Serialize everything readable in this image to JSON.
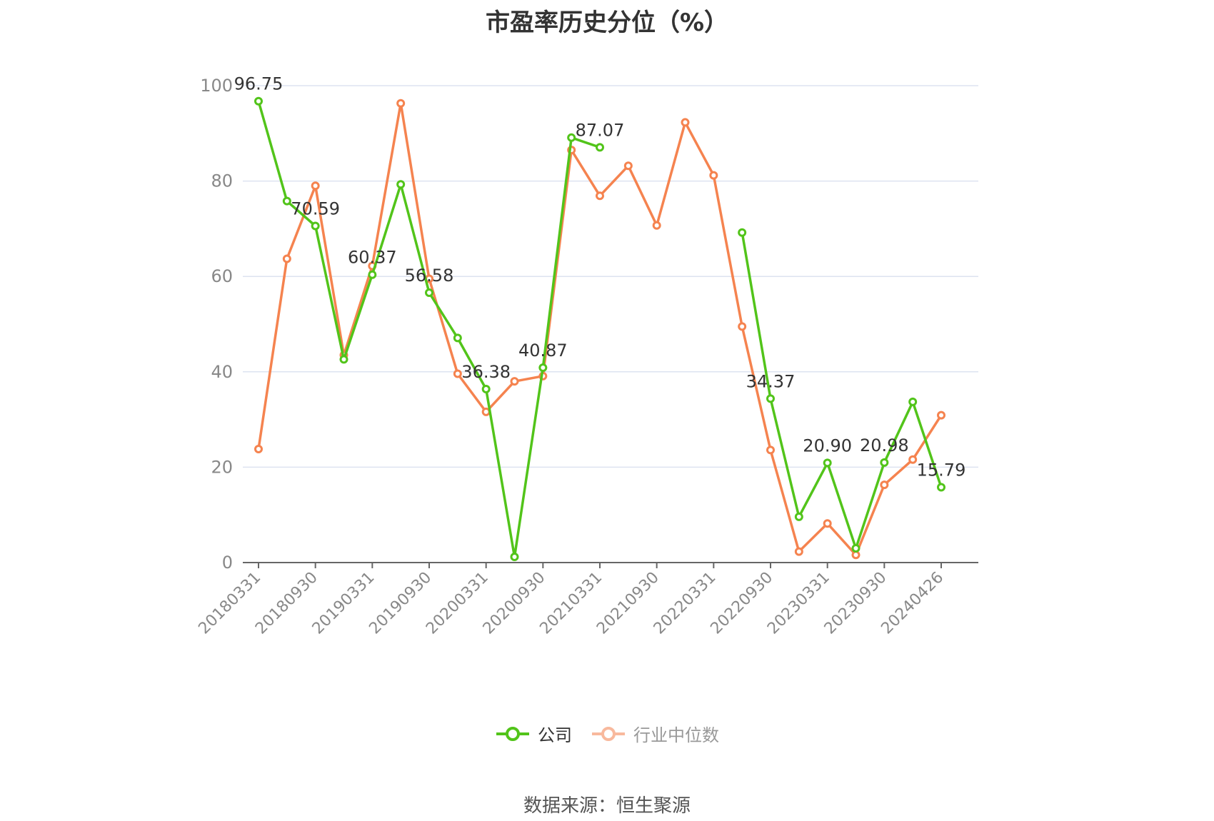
{
  "title": "市盈率历史分位（%）",
  "source": "数据来源：恒生聚源",
  "colors": {
    "company": "#52c41a",
    "industry": "#f5834f",
    "industry_legend": "#f8b99d",
    "grid": "#dde3f0",
    "axis": "#666666",
    "tick_text": "#888888"
  },
  "chart_data": {
    "type": "line",
    "title": "市盈率历史分位（%）",
    "x": [
      "20180331",
      "20180630",
      "20180930",
      "20181231",
      "20190331",
      "20190630",
      "20190930",
      "20191231",
      "20200331",
      "20200630",
      "20200930",
      "20201231",
      "20210331",
      "20210630",
      "20210930",
      "20211231",
      "20220331",
      "20220630",
      "20220930",
      "20221231",
      "20230331",
      "20230630",
      "20230930",
      "20231231",
      "20240426"
    ],
    "x_tick_labels": [
      "20180331",
      "20180930",
      "20190331",
      "20190930",
      "20200331",
      "20200930",
      "20210331",
      "20210930",
      "20220331",
      "20220930",
      "20230331",
      "20230930",
      "20240426"
    ],
    "ylim": [
      0,
      100
    ],
    "y_ticks": [
      0,
      20,
      40,
      60,
      80,
      100
    ],
    "grid": true,
    "legend_position": "bottom-center",
    "series": [
      {
        "name": "公司",
        "values": [
          96.75,
          75.8,
          70.59,
          42.6,
          60.37,
          79.3,
          56.58,
          47.1,
          36.38,
          1.2,
          40.87,
          89.1,
          87.07,
          null,
          null,
          null,
          null,
          69.2,
          34.37,
          9.6,
          20.9,
          3.0,
          20.98,
          33.7,
          15.79
        ],
        "labels": [
          "96.75",
          "",
          "70.59",
          "",
          "60.37",
          "",
          "56.58",
          "",
          "36.38",
          "",
          "40.87",
          "",
          "87.07",
          "",
          "",
          "",
          "",
          "",
          "34.37",
          "",
          "20.90",
          "",
          "20.98",
          "",
          "15.79"
        ]
      },
      {
        "name": "行业中位数",
        "values": [
          23.8,
          63.7,
          79.0,
          43.5,
          62.2,
          96.3,
          59.5,
          39.6,
          31.6,
          38.0,
          39.1,
          86.5,
          76.9,
          83.2,
          70.7,
          92.3,
          81.2,
          49.5,
          23.6,
          2.3,
          8.2,
          1.6,
          16.3,
          21.6,
          30.9
        ]
      }
    ]
  },
  "legend": [
    {
      "name": "公司",
      "state": "on"
    },
    {
      "name": "行业中位数",
      "state": "off"
    }
  ]
}
